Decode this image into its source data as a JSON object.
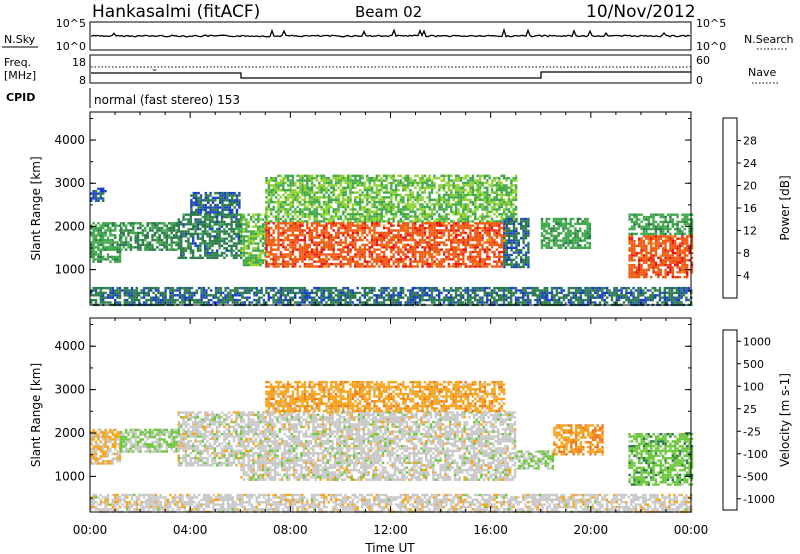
{
  "header": {
    "station": "Hankasalmi (fitACF)",
    "beam": "Beam 02",
    "date": "10/Nov/2012"
  },
  "sky_panel": {
    "label": "N.Sky",
    "right_label": "N.Search",
    "ticks_left": [
      "10^5",
      "10^0"
    ],
    "ticks_right": [
      "10^5",
      "10^0"
    ]
  },
  "freq_panel": {
    "label_line1": "Freq.",
    "label_line2": "[MHz]",
    "ticks_left": [
      "18",
      "8"
    ],
    "ticks_right": [
      "60",
      "0"
    ],
    "right_label": "Nave"
  },
  "cpid": {
    "label": "CPID",
    "text": "normal (fast stereo) 153"
  },
  "colors": {
    "power": [
      "#1010e0",
      "#1840c8",
      "#2a7a4a",
      "#3fa84a",
      "#8ed22c",
      "#e8d418",
      "#f59a16",
      "#f05a10",
      "#e81010"
    ],
    "velocity": [
      "#2040d0",
      "#2a6aa0",
      "#2a7a4a",
      "#6ac83a",
      "#c8c8c8",
      "#f5a41e",
      "#f07818",
      "#ee4a14",
      "#e81010"
    ],
    "nodata": "#ffffff",
    "ground": "#c0c0c0"
  },
  "chart_data": [
    {
      "type": "heatmap",
      "name": "power",
      "xlabel": "",
      "ylabel": "Slant Range [km]",
      "y_ticks": [
        "1000",
        "2000",
        "3000",
        "4000"
      ],
      "ylim": [
        180,
        4650
      ],
      "xlim": [
        0,
        24
      ],
      "colorbar": {
        "label": "Power [dB]",
        "ticks": [
          "4",
          "8",
          "12",
          "16",
          "20",
          "24",
          "28"
        ],
        "range": [
          0,
          32
        ]
      },
      "regions": [
        {
          "t0": 0.0,
          "t1": 1.2,
          "r0": 1200,
          "r1": 2100,
          "v": 12
        },
        {
          "t0": 1.2,
          "t1": 3.5,
          "r0": 1450,
          "r1": 2100,
          "v": 10
        },
        {
          "t0": 0.0,
          "t1": 0.6,
          "r0": 2600,
          "r1": 2900,
          "v": 6
        },
        {
          "t0": 3.5,
          "t1": 6.0,
          "r0": 1250,
          "r1": 2300,
          "v": 9
        },
        {
          "t0": 4.0,
          "t1": 6.0,
          "r0": 2300,
          "r1": 2800,
          "v": 7
        },
        {
          "t0": 6.0,
          "t1": 7.0,
          "r0": 1100,
          "r1": 2300,
          "v": 14
        },
        {
          "t0": 7.0,
          "t1": 17.0,
          "r0": 2100,
          "r1": 3200,
          "v": 14
        },
        {
          "t0": 7.0,
          "t1": 16.5,
          "r0": 1050,
          "r1": 2100,
          "v": 27
        },
        {
          "t0": 16.5,
          "t1": 17.5,
          "r0": 1050,
          "r1": 2200,
          "v": 8
        },
        {
          "t0": 18.0,
          "t1": 20.0,
          "r0": 1500,
          "r1": 2200,
          "v": 12
        },
        {
          "t0": 21.5,
          "t1": 24.0,
          "r0": 800,
          "r1": 1800,
          "v": 27
        },
        {
          "t0": 21.5,
          "t1": 24.0,
          "r0": 1800,
          "r1": 2300,
          "v": 12
        },
        {
          "t0": 0.0,
          "t1": 24.0,
          "r0": 200,
          "r1": 600,
          "v": 8
        }
      ]
    },
    {
      "type": "heatmap",
      "name": "velocity",
      "xlabel": "Time UT",
      "ylabel": "Slant Range [km]",
      "y_ticks": [
        "1000",
        "2000",
        "3000",
        "4000"
      ],
      "ylim": [
        180,
        4650
      ],
      "xlim": [
        0,
        24
      ],
      "x_ticks": [
        "00:00",
        "04:00",
        "08:00",
        "12:00",
        "16:00",
        "20:00",
        "00:00"
      ],
      "colorbar": {
        "label": "Velocity [m s-1]",
        "ticks": [
          "1000",
          "500",
          "100",
          "25",
          "-25",
          "-100",
          "-500",
          "-1000"
        ],
        "range": [
          -1250,
          1250
        ]
      },
      "regions": [
        {
          "t0": 0.0,
          "t1": 1.2,
          "r0": 1300,
          "r1": 2100,
          "v": -200
        },
        {
          "t0": 1.2,
          "t1": 3.5,
          "r0": 1600,
          "r1": 2100,
          "v": 150
        },
        {
          "t0": 3.5,
          "t1": 6.0,
          "r0": 1250,
          "r1": 2500,
          "v": 0
        },
        {
          "t0": 6.0,
          "t1": 17.0,
          "r0": 950,
          "r1": 2500,
          "v": 0
        },
        {
          "t0": 7.0,
          "t1": 16.5,
          "r0": 2500,
          "r1": 3200,
          "v": -300
        },
        {
          "t0": 17.0,
          "t1": 18.5,
          "r0": 1200,
          "r1": 1600,
          "v": 150
        },
        {
          "t0": 18.5,
          "t1": 20.5,
          "r0": 1500,
          "r1": 2200,
          "v": -400
        },
        {
          "t0": 21.5,
          "t1": 24.0,
          "r0": 800,
          "r1": 2000,
          "v": 300
        },
        {
          "t0": 0.0,
          "t1": 24.0,
          "r0": 200,
          "r1": 600,
          "v": -30
        }
      ]
    }
  ]
}
